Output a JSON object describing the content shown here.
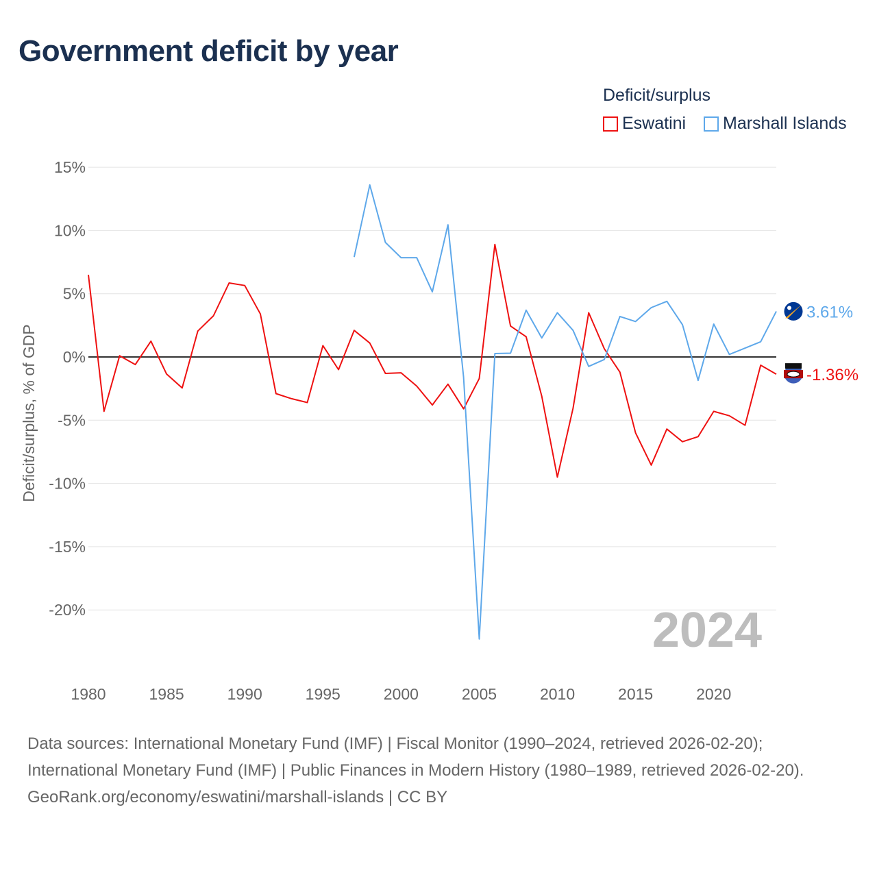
{
  "title": "Government deficit by year",
  "legend": {
    "title": "Deficit/surplus",
    "items": [
      "Eswatini",
      "Marshall Islands"
    ]
  },
  "watermark_year": "2024",
  "sources": [
    "Data sources: International Monetary Fund (IMF) | Fiscal Monitor (1990–2024, retrieved 2026-02-20); International Monetary Fund (IMF) | Public Finances in Modern History (1980–1989, retrieved 2026-02-20).",
    "GeoRank.org/economy/eswatini/marshall-islands | CC BY"
  ],
  "chart_data": {
    "type": "line",
    "title": "Government deficit by year",
    "xlabel": "",
    "ylabel": "Deficit/surplus, % of GDP",
    "xlim": [
      1980,
      2024
    ],
    "ylim": [
      -24,
      16
    ],
    "yticks": [
      15,
      10,
      5,
      0,
      -5,
      -10,
      -15,
      -20
    ],
    "ytick_labels": [
      "15%",
      "10%",
      "5%",
      "0%",
      "-5%",
      "-10%",
      "-15%",
      "-20%"
    ],
    "xticks": [
      1980,
      1985,
      1990,
      1995,
      2000,
      2005,
      2010,
      2015,
      2020
    ],
    "grid": true,
    "legend_position": "top-right",
    "series": [
      {
        "name": "Eswatini",
        "color": "#ee1111",
        "end_label": "-1.36%",
        "start": 1980,
        "values": [
          6.5,
          -4.3,
          0.1,
          -0.6,
          1.25,
          -1.35,
          -2.45,
          2.05,
          3.25,
          5.85,
          5.65,
          3.4,
          -2.9,
          -3.3,
          -3.6,
          0.9,
          -1.0,
          2.1,
          1.1,
          -1.3,
          -1.25,
          -2.3,
          -3.8,
          -2.15,
          -4.1,
          -1.7,
          8.9,
          2.45,
          1.6,
          -3.1,
          -9.5,
          -4.05,
          3.5,
          0.65,
          -1.2,
          -6.0,
          -8.55,
          -5.7,
          -6.7,
          -6.3,
          -4.3,
          -4.65,
          -5.4,
          -0.65,
          -1.36
        ]
      },
      {
        "name": "Marshall Islands",
        "color": "#5ea8ea",
        "end_label": "3.61%",
        "start": 1997,
        "values": [
          7.9,
          13.6,
          9.05,
          7.85,
          7.85,
          5.15,
          10.45,
          -1.6,
          -22.3,
          0.27,
          0.3,
          3.7,
          1.5,
          3.5,
          2.1,
          -0.75,
          -0.2,
          3.2,
          2.8,
          3.9,
          4.4,
          2.55,
          -1.85,
          2.6,
          0.2,
          0.7,
          1.2,
          3.61
        ]
      }
    ]
  }
}
